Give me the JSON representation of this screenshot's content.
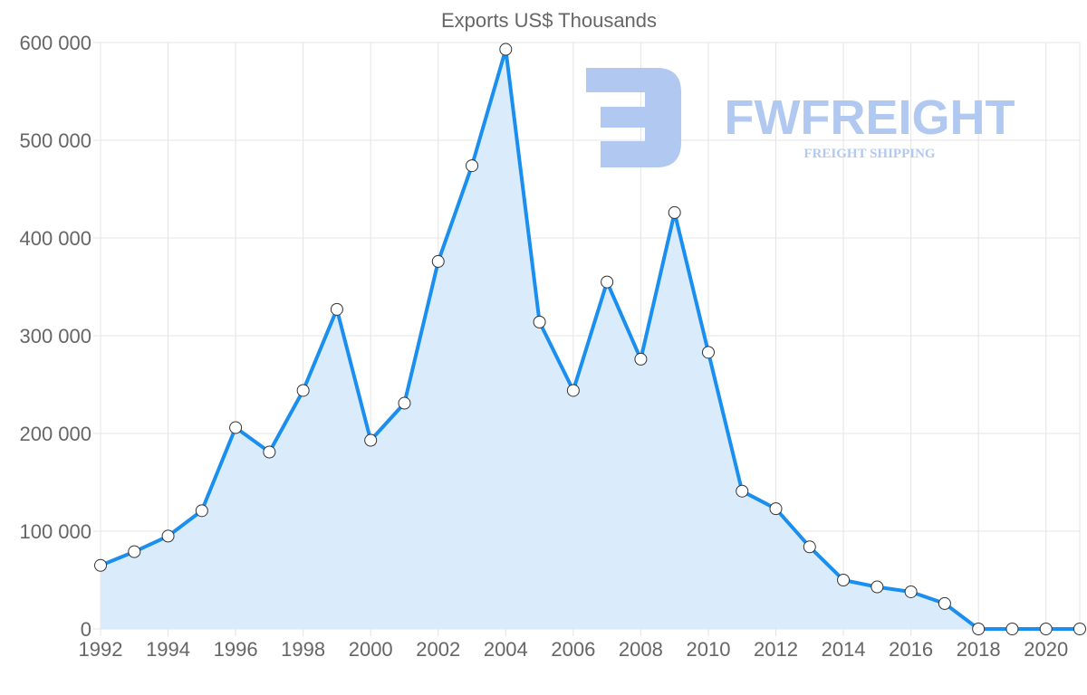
{
  "chart_data": {
    "type": "area",
    "title": "Exports US$ Thousands",
    "xlabel": "",
    "ylabel": "",
    "x": [
      1992,
      1993,
      1994,
      1995,
      1996,
      1997,
      1998,
      1999,
      2000,
      2001,
      2002,
      2003,
      2004,
      2005,
      2006,
      2007,
      2008,
      2009,
      2010,
      2011,
      2012,
      2013,
      2014,
      2015,
      2016,
      2017,
      2018,
      2019,
      2020,
      2021
    ],
    "series": [
      {
        "name": "Exports",
        "values": [
          65000,
          79000,
          95000,
          121000,
          206000,
          181000,
          244000,
          327000,
          193000,
          231000,
          376000,
          474000,
          593000,
          314000,
          244000,
          355000,
          276000,
          426000,
          283000,
          141000,
          123000,
          84000,
          50000,
          43000,
          38000,
          26000,
          0,
          0,
          0,
          0
        ]
      }
    ],
    "ylim": [
      0,
      600000
    ],
    "y_ticks": [
      0,
      100000,
      200000,
      300000,
      400000,
      500000,
      600000
    ],
    "y_tick_labels": [
      "0",
      "100 000",
      "200 000",
      "300 000",
      "400 000",
      "500 000",
      "600 000"
    ],
    "x_tick_labels": [
      "1992",
      "1994",
      "1996",
      "1998",
      "2000",
      "2002",
      "2004",
      "2006",
      "2008",
      "2010",
      "2012",
      "2014",
      "2016",
      "2018",
      "2020"
    ],
    "grid": true,
    "colors": {
      "line": "#1a8ff0",
      "fill": "#d8ebfb",
      "grid": "#e4e4e4",
      "text": "#666666"
    }
  },
  "watermark": {
    "brand": "FWFREIGHT",
    "tagline": "FREIGHT SHIPPING",
    "color": "#b1c9f1"
  }
}
